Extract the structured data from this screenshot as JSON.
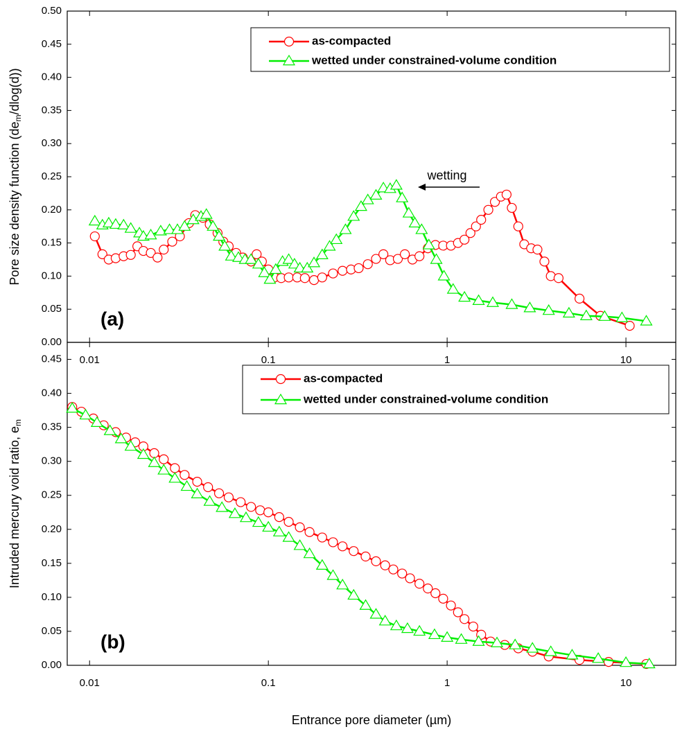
{
  "chart_data": [
    {
      "type": "line",
      "label": "(a)",
      "ylabel": [
        "Pore size density function (de",
        "m",
        "/dlog(d))"
      ],
      "xscale": "log",
      "xlim": [
        0.0075,
        19
      ],
      "xticks": [
        0.01,
        0.1,
        1,
        10
      ],
      "ylim": [
        0,
        0.5
      ],
      "yticks": [
        {
          "value": 0,
          "label": "0.00"
        },
        {
          "value": 0.05,
          "label": "0.05"
        },
        {
          "value": 0.1,
          "label": "0.10"
        },
        {
          "value": 0.15,
          "label": "0.15"
        },
        {
          "value": 0.2,
          "label": "0.20"
        },
        {
          "value": 0.25,
          "label": "0.25"
        },
        {
          "value": 0.3,
          "label": "0.30"
        },
        {
          "value": 0.35,
          "label": "0.35"
        },
        {
          "value": 0.4,
          "label": "0.40"
        },
        {
          "value": 0.45,
          "label": "0.45"
        },
        {
          "value": 0.5,
          "label": "0.50"
        }
      ],
      "legend": "upper right",
      "annotation": "wetting",
      "series": [
        {
          "name": "as-compacted",
          "color": "#ff0000",
          "marker": "circle",
          "x": [
            0.0107,
            0.0118,
            0.0128,
            0.014,
            0.0155,
            0.017,
            0.0185,
            0.02,
            0.022,
            0.024,
            0.026,
            0.029,
            0.032,
            0.036,
            0.039,
            0.043,
            0.047,
            0.052,
            0.056,
            0.06,
            0.066,
            0.072,
            0.08,
            0.086,
            0.092,
            0.1,
            0.108,
            0.118,
            0.13,
            0.145,
            0.16,
            0.18,
            0.2,
            0.23,
            0.26,
            0.29,
            0.32,
            0.36,
            0.4,
            0.44,
            0.48,
            0.53,
            0.58,
            0.64,
            0.7,
            0.78,
            0.86,
            0.95,
            1.05,
            1.15,
            1.25,
            1.35,
            1.45,
            1.55,
            1.7,
            1.85,
            2.0,
            2.15,
            2.3,
            2.5,
            2.7,
            2.95,
            3.2,
            3.5,
            3.8,
            4.2,
            5.5,
            7.2,
            10.5
          ],
          "values": [
            0.16,
            0.133,
            0.125,
            0.127,
            0.13,
            0.132,
            0.145,
            0.138,
            0.135,
            0.128,
            0.14,
            0.152,
            0.16,
            0.18,
            0.192,
            0.188,
            0.178,
            0.165,
            0.152,
            0.145,
            0.135,
            0.128,
            0.122,
            0.133,
            0.122,
            0.11,
            0.098,
            0.097,
            0.098,
            0.098,
            0.097,
            0.094,
            0.098,
            0.104,
            0.108,
            0.11,
            0.112,
            0.118,
            0.126,
            0.133,
            0.124,
            0.126,
            0.133,
            0.125,
            0.13,
            0.142,
            0.147,
            0.146,
            0.146,
            0.15,
            0.155,
            0.165,
            0.175,
            0.185,
            0.2,
            0.212,
            0.22,
            0.223,
            0.203,
            0.175,
            0.148,
            0.142,
            0.14,
            0.122,
            0.1,
            0.097,
            0.066,
            0.04,
            0.025
          ]
        },
        {
          "name": "wetted under constrained-volume condition",
          "color": "#00ee00",
          "marker": "triangle",
          "x": [
            0.0107,
            0.0118,
            0.0128,
            0.014,
            0.0155,
            0.017,
            0.019,
            0.02,
            0.022,
            0.025,
            0.028,
            0.031,
            0.034,
            0.038,
            0.042,
            0.045,
            0.049,
            0.053,
            0.057,
            0.062,
            0.068,
            0.074,
            0.08,
            0.088,
            0.095,
            0.102,
            0.11,
            0.12,
            0.13,
            0.14,
            0.15,
            0.165,
            0.18,
            0.2,
            0.22,
            0.24,
            0.27,
            0.3,
            0.33,
            0.36,
            0.4,
            0.44,
            0.48,
            0.52,
            0.56,
            0.61,
            0.66,
            0.72,
            0.79,
            0.87,
            0.96,
            1.08,
            1.25,
            1.5,
            1.8,
            2.3,
            2.9,
            3.7,
            4.8,
            6.0,
            7.6,
            9.5,
            13
          ],
          "values": [
            0.183,
            0.177,
            0.18,
            0.178,
            0.177,
            0.172,
            0.165,
            0.16,
            0.162,
            0.168,
            0.17,
            0.17,
            0.175,
            0.185,
            0.19,
            0.193,
            0.175,
            0.16,
            0.145,
            0.13,
            0.128,
            0.125,
            0.125,
            0.118,
            0.105,
            0.095,
            0.11,
            0.122,
            0.125,
            0.118,
            0.112,
            0.112,
            0.12,
            0.132,
            0.145,
            0.155,
            0.17,
            0.19,
            0.205,
            0.215,
            0.222,
            0.233,
            0.232,
            0.237,
            0.218,
            0.195,
            0.18,
            0.17,
            0.147,
            0.125,
            0.1,
            0.08,
            0.068,
            0.063,
            0.06,
            0.057,
            0.052,
            0.048,
            0.044,
            0.04,
            0.039,
            0.037,
            0.032
          ]
        }
      ]
    },
    {
      "type": "line",
      "label": "(b)",
      "ylabel": [
        "Intruded mercury  void ratio, e",
        "m"
      ],
      "xlabel": "Entrance pore diameter (µm)",
      "xscale": "log",
      "xlim": [
        0.0075,
        19
      ],
      "xticks": [
        0.01,
        0.1,
        1,
        10
      ],
      "ylim": [
        0,
        0.475
      ],
      "yticks": [
        {
          "value": 0,
          "label": "0.00"
        },
        {
          "value": 0.05,
          "label": "0.05"
        },
        {
          "value": 0.1,
          "label": "0.10"
        },
        {
          "value": 0.15,
          "label": "0.15"
        },
        {
          "value": 0.2,
          "label": "0.20"
        },
        {
          "value": 0.25,
          "label": "0.25"
        },
        {
          "value": 0.3,
          "label": "0.30"
        },
        {
          "value": 0.35,
          "label": "0.35"
        },
        {
          "value": 0.4,
          "label": "0.40"
        },
        {
          "value": 0.45,
          "label": "0.45"
        }
      ],
      "legend": "upper right",
      "series": [
        {
          "name": "as-compacted",
          "color": "#ff0000",
          "marker": "circle",
          "x": [
            0.008,
            0.009,
            0.0105,
            0.012,
            0.014,
            0.016,
            0.018,
            0.02,
            0.023,
            0.026,
            0.03,
            0.034,
            0.04,
            0.046,
            0.053,
            0.06,
            0.07,
            0.08,
            0.09,
            0.1,
            0.115,
            0.13,
            0.15,
            0.17,
            0.2,
            0.23,
            0.26,
            0.3,
            0.35,
            0.4,
            0.45,
            0.5,
            0.56,
            0.62,
            0.7,
            0.78,
            0.86,
            0.95,
            1.05,
            1.15,
            1.25,
            1.4,
            1.55,
            1.75,
            2.1,
            2.5,
            3.0,
            3.7,
            5.5,
            8,
            13
          ],
          "values": [
            0.38,
            0.373,
            0.363,
            0.353,
            0.343,
            0.335,
            0.328,
            0.322,
            0.312,
            0.303,
            0.29,
            0.28,
            0.27,
            0.262,
            0.253,
            0.247,
            0.24,
            0.233,
            0.228,
            0.225,
            0.218,
            0.211,
            0.203,
            0.196,
            0.188,
            0.181,
            0.175,
            0.168,
            0.16,
            0.153,
            0.147,
            0.141,
            0.135,
            0.128,
            0.12,
            0.113,
            0.106,
            0.098,
            0.088,
            0.078,
            0.068,
            0.057,
            0.045,
            0.035,
            0.03,
            0.025,
            0.02,
            0.013,
            0.008,
            0.005,
            0.002
          ]
        },
        {
          "name": "wetted under constrained-volume condition",
          "color": "#00ee00",
          "marker": "triangle",
          "x": [
            0.008,
            0.0095,
            0.011,
            0.013,
            0.015,
            0.017,
            0.02,
            0.023,
            0.026,
            0.03,
            0.035,
            0.04,
            0.047,
            0.055,
            0.065,
            0.075,
            0.088,
            0.1,
            0.115,
            0.13,
            0.15,
            0.17,
            0.2,
            0.23,
            0.26,
            0.3,
            0.35,
            0.4,
            0.45,
            0.52,
            0.6,
            0.7,
            0.85,
            1.0,
            1.2,
            1.5,
            1.9,
            2.4,
            3.0,
            3.8,
            5,
            7,
            10,
            13.5
          ],
          "values": [
            0.378,
            0.368,
            0.357,
            0.345,
            0.333,
            0.322,
            0.31,
            0.298,
            0.287,
            0.275,
            0.263,
            0.252,
            0.241,
            0.232,
            0.223,
            0.217,
            0.21,
            0.203,
            0.196,
            0.188,
            0.176,
            0.164,
            0.147,
            0.132,
            0.118,
            0.103,
            0.088,
            0.075,
            0.065,
            0.058,
            0.054,
            0.05,
            0.045,
            0.041,
            0.038,
            0.035,
            0.033,
            0.03,
            0.025,
            0.02,
            0.015,
            0.01,
            0.004,
            0.002
          ]
        }
      ]
    }
  ]
}
